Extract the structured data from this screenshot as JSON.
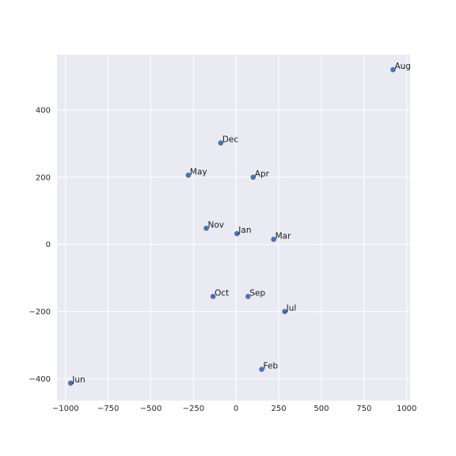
{
  "chart_data": {
    "type": "scatter",
    "title": "",
    "xlabel": "",
    "ylabel": "",
    "xlim": [
      -1050,
      1020
    ],
    "ylim": [
      -465,
      565
    ],
    "grid": true,
    "x_ticks": [
      -1000,
      -750,
      -500,
      -250,
      0,
      250,
      500,
      750,
      1000
    ],
    "x_tick_labels": [
      "−1000",
      "−750",
      "−500",
      "−250",
      "0",
      "250",
      "500",
      "750",
      "1000"
    ],
    "y_ticks": [
      -400,
      -200,
      0,
      200,
      400
    ],
    "y_tick_labels": [
      "−400",
      "−200",
      "0",
      "200",
      "400"
    ],
    "points": [
      {
        "label": "Aug",
        "x": 920,
        "y": 520
      },
      {
        "label": "Dec",
        "x": -90,
        "y": 302
      },
      {
        "label": "May",
        "x": -280,
        "y": 206
      },
      {
        "label": "Apr",
        "x": 100,
        "y": 200
      },
      {
        "label": "Nov",
        "x": -175,
        "y": 48
      },
      {
        "label": "Jan",
        "x": 5,
        "y": 32
      },
      {
        "label": "Mar",
        "x": 220,
        "y": 15
      },
      {
        "label": "Oct",
        "x": -135,
        "y": -155
      },
      {
        "label": "Sep",
        "x": 70,
        "y": -155
      },
      {
        "label": "Jul",
        "x": 285,
        "y": -200
      },
      {
        "label": "Feb",
        "x": 150,
        "y": -372
      },
      {
        "label": "Jun",
        "x": -970,
        "y": -413
      }
    ],
    "colors": {
      "background": "#eaeaf2",
      "grid": "#ffffff",
      "point": "#4c72b0"
    }
  }
}
